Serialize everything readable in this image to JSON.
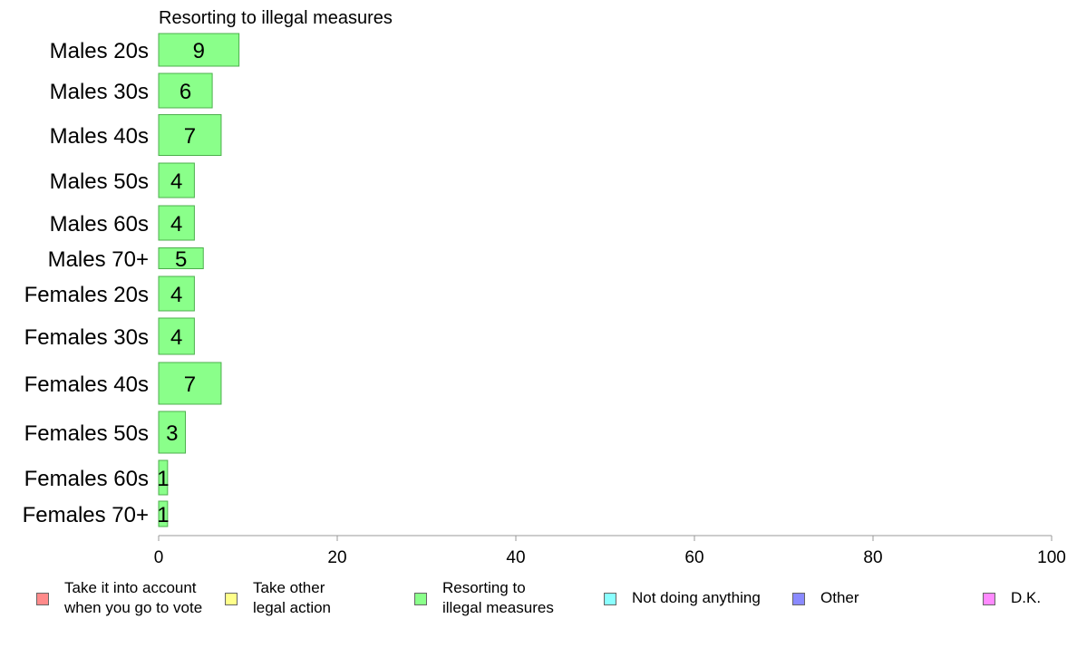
{
  "chart_data": {
    "type": "bar",
    "orientation": "horizontal",
    "title": "Resorting to illegal measures",
    "categories": [
      "Males 20s",
      "Males 30s",
      "Males 40s",
      "Males 50s",
      "Males 60s",
      "Males 70+",
      "Females 20s",
      "Females 30s",
      "Females 40s",
      "Females 50s",
      "Females 60s",
      "Females 70+"
    ],
    "values": [
      9,
      6,
      7,
      4,
      4,
      5,
      4,
      4,
      7,
      3,
      1,
      1
    ],
    "value_labels": [
      "9",
      "6",
      "7",
      "4",
      "4",
      "5",
      "4",
      "4",
      "7",
      "3",
      "1",
      "1"
    ],
    "bar_color": "#8aff8a",
    "bar_edge_color": "#4caf4c",
    "xlim": [
      0,
      100
    ],
    "xticks": [
      0,
      20,
      40,
      60,
      80,
      100
    ],
    "grid": false,
    "legend": {
      "placement": "bottom",
      "entries": [
        {
          "label": "Take it into account\nwhen you go to vote",
          "color": "#ff8a8a"
        },
        {
          "label": "Take other\nlegal action",
          "color": "#ffff8a"
        },
        {
          "label": "Resorting to\nillegal measures",
          "color": "#8aff8a"
        },
        {
          "label": "Not doing anything",
          "color": "#8affff"
        },
        {
          "label": "Other",
          "color": "#8a8aff"
        },
        {
          "label": "D.K.",
          "color": "#ff8aff"
        }
      ]
    }
  }
}
